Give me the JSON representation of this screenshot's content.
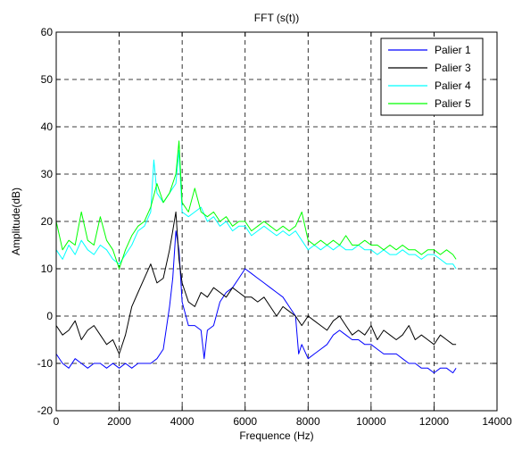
{
  "chart_data": {
    "type": "line",
    "title": "FFT (s(t))",
    "xlabel": "Frequence (Hz)",
    "ylabel": "Amplitude(dB)",
    "xlim": [
      0,
      14000
    ],
    "ylim": [
      -20,
      60
    ],
    "x_ticks": [
      0,
      2000,
      4000,
      6000,
      8000,
      10000,
      12000,
      14000
    ],
    "y_ticks": [
      -20,
      -10,
      0,
      10,
      20,
      30,
      40,
      50,
      60
    ],
    "x_tick_labels": [
      "0",
      "2000",
      "4000",
      "6000",
      "8000",
      "10000",
      "12000",
      "14000"
    ],
    "y_tick_labels": [
      "-20",
      "-10",
      "0",
      "10",
      "20",
      "30",
      "40",
      "50",
      "60"
    ],
    "grid": true,
    "legend_position": "top-right",
    "series": [
      {
        "name": "Palier 1",
        "color": "#0000ff",
        "x": [
          0,
          200,
          400,
          600,
          800,
          1000,
          1200,
          1400,
          1600,
          1800,
          2000,
          2200,
          2400,
          2600,
          2800,
          3000,
          3200,
          3400,
          3600,
          3700,
          3800,
          3900,
          4000,
          4200,
          4400,
          4600,
          4700,
          4800,
          5000,
          5200,
          5400,
          5600,
          5800,
          6000,
          6200,
          6400,
          6600,
          6800,
          7000,
          7200,
          7400,
          7600,
          7700,
          7800,
          8000,
          8200,
          8400,
          8600,
          8800,
          9000,
          9200,
          9400,
          9600,
          9800,
          10000,
          10200,
          10400,
          10600,
          10800,
          11000,
          11200,
          11400,
          11600,
          11800,
          12000,
          12200,
          12400,
          12600,
          12700
        ],
        "y": [
          -8,
          -10,
          -11,
          -9,
          -10,
          -11,
          -10,
          -10,
          -11,
          -10,
          -11,
          -10,
          -11,
          -10,
          -10,
          -10,
          -9,
          -7,
          2,
          8,
          18,
          14,
          3,
          -2,
          -2,
          -3,
          -9,
          -3,
          -2,
          3,
          5,
          6,
          8,
          10,
          9,
          8,
          7,
          6,
          5,
          4,
          2,
          0,
          -8,
          -6,
          -9,
          -8,
          -7,
          -6,
          -4,
          -3,
          -4,
          -5,
          -5,
          -6,
          -6,
          -7,
          -8,
          -8,
          -8,
          -9,
          -10,
          -10,
          -11,
          -11,
          -12,
          -11,
          -11,
          -12,
          -11
        ]
      },
      {
        "name": "Palier 3",
        "color": "#000000",
        "x": [
          0,
          200,
          400,
          600,
          800,
          1000,
          1200,
          1400,
          1600,
          1800,
          2000,
          2200,
          2400,
          2600,
          2800,
          3000,
          3200,
          3400,
          3600,
          3700,
          3800,
          3900,
          4000,
          4200,
          4400,
          4600,
          4800,
          5000,
          5200,
          5400,
          5600,
          5800,
          6000,
          6200,
          6400,
          6600,
          6800,
          7000,
          7200,
          7400,
          7600,
          7800,
          8000,
          8200,
          8400,
          8600,
          8800,
          9000,
          9200,
          9400,
          9600,
          9800,
          10000,
          10200,
          10400,
          10600,
          10800,
          11000,
          11200,
          11400,
          11600,
          11800,
          12000,
          12200,
          12400,
          12600,
          12700
        ],
        "y": [
          -2,
          -4,
          -3,
          -1,
          -5,
          -3,
          -2,
          -4,
          -6,
          -5,
          -8,
          -4,
          2,
          5,
          8,
          11,
          7,
          8,
          14,
          18,
          22,
          12,
          7,
          3,
          2,
          5,
          4,
          6,
          5,
          4,
          6,
          5,
          4,
          4,
          3,
          4,
          2,
          0,
          2,
          1,
          0,
          -2,
          0,
          -1,
          -2,
          -3,
          -1,
          0,
          -2,
          -4,
          -3,
          -4,
          -2,
          -5,
          -3,
          -4,
          -5,
          -4,
          -2,
          -5,
          -4,
          -5,
          -6,
          -4,
          -5,
          -6,
          -6
        ]
      },
      {
        "name": "Palier 4",
        "color": "#00ffff",
        "x": [
          0,
          200,
          400,
          600,
          800,
          1000,
          1200,
          1400,
          1600,
          1800,
          2000,
          2200,
          2400,
          2600,
          2800,
          3000,
          3100,
          3200,
          3400,
          3600,
          3800,
          3900,
          4000,
          4200,
          4400,
          4600,
          4800,
          5000,
          5200,
          5400,
          5600,
          5800,
          6000,
          6200,
          6400,
          6600,
          6800,
          7000,
          7200,
          7400,
          7600,
          7800,
          8000,
          8200,
          8400,
          8600,
          8800,
          9000,
          9200,
          9400,
          9600,
          9800,
          10000,
          10200,
          10400,
          10600,
          10800,
          11000,
          11200,
          11400,
          11600,
          11800,
          12000,
          12200,
          12400,
          12600,
          12700
        ],
        "y": [
          14,
          12,
          15,
          13,
          16,
          14,
          13,
          15,
          14,
          12,
          11,
          13,
          15,
          18,
          19,
          22,
          33,
          26,
          24,
          26,
          28,
          35,
          22,
          21,
          22,
          23,
          20,
          21,
          19,
          20,
          18,
          19,
          19,
          17,
          18,
          19,
          18,
          17,
          18,
          17,
          18,
          16,
          14,
          15,
          14,
          15,
          14,
          15,
          14,
          14,
          15,
          14,
          14,
          13,
          14,
          13,
          13,
          14,
          13,
          13,
          12,
          13,
          13,
          12,
          11,
          11,
          10
        ]
      },
      {
        "name": "Palier 5",
        "color": "#00ff00",
        "x": [
          0,
          200,
          400,
          600,
          800,
          1000,
          1200,
          1400,
          1600,
          1800,
          2000,
          2200,
          2400,
          2600,
          2800,
          3000,
          3200,
          3400,
          3600,
          3800,
          3900,
          4000,
          4200,
          4400,
          4600,
          4800,
          5000,
          5200,
          5400,
          5600,
          5800,
          6000,
          6200,
          6400,
          6600,
          6800,
          7000,
          7200,
          7400,
          7600,
          7800,
          8000,
          8200,
          8400,
          8600,
          8800,
          9000,
          9200,
          9400,
          9600,
          9800,
          10000,
          10200,
          10400,
          10600,
          10800,
          11000,
          11200,
          11400,
          11600,
          11800,
          12000,
          12200,
          12400,
          12600,
          12700
        ],
        "y": [
          20,
          14,
          16,
          15,
          22,
          16,
          15,
          21,
          16,
          14,
          10,
          14,
          17,
          19,
          20,
          23,
          28,
          24,
          26,
          30,
          37,
          24,
          22,
          27,
          22,
          21,
          22,
          20,
          21,
          19,
          20,
          20,
          18,
          19,
          20,
          19,
          18,
          19,
          18,
          19,
          22,
          16,
          15,
          16,
          15,
          16,
          15,
          17,
          15,
          15,
          16,
          15,
          15,
          14,
          15,
          14,
          15,
          14,
          14,
          13,
          14,
          14,
          13,
          14,
          13,
          12
        ]
      }
    ]
  }
}
